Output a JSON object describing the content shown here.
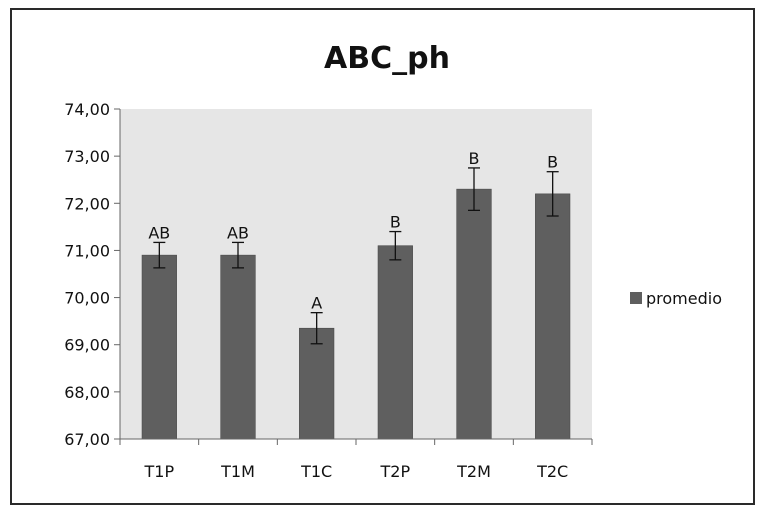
{
  "chart_data": {
    "type": "bar",
    "title": "ABC_ph",
    "xlabel": "",
    "ylabel": "",
    "categories": [
      "T1P",
      "T1M",
      "T1C",
      "T2P",
      "T2M",
      "T2C"
    ],
    "series": [
      {
        "name": "promedio",
        "values": [
          70.9,
          70.9,
          69.35,
          71.1,
          72.3,
          72.2
        ],
        "error": [
          0.27,
          0.27,
          0.33,
          0.3,
          0.45,
          0.47
        ],
        "labels": [
          "AB",
          "AB",
          "A",
          "B",
          "B",
          "B"
        ]
      }
    ],
    "ylim": [
      67,
      74
    ],
    "yticks": [
      "67,00",
      "68,00",
      "69,00",
      "70,00",
      "71,00",
      "72,00",
      "73,00",
      "74,00"
    ],
    "grid": false,
    "legend_position": "right",
    "colors": {
      "bar": "#5f5f5f",
      "plot_background": "#e6e6e6",
      "frame": "#2a2a2a"
    }
  }
}
